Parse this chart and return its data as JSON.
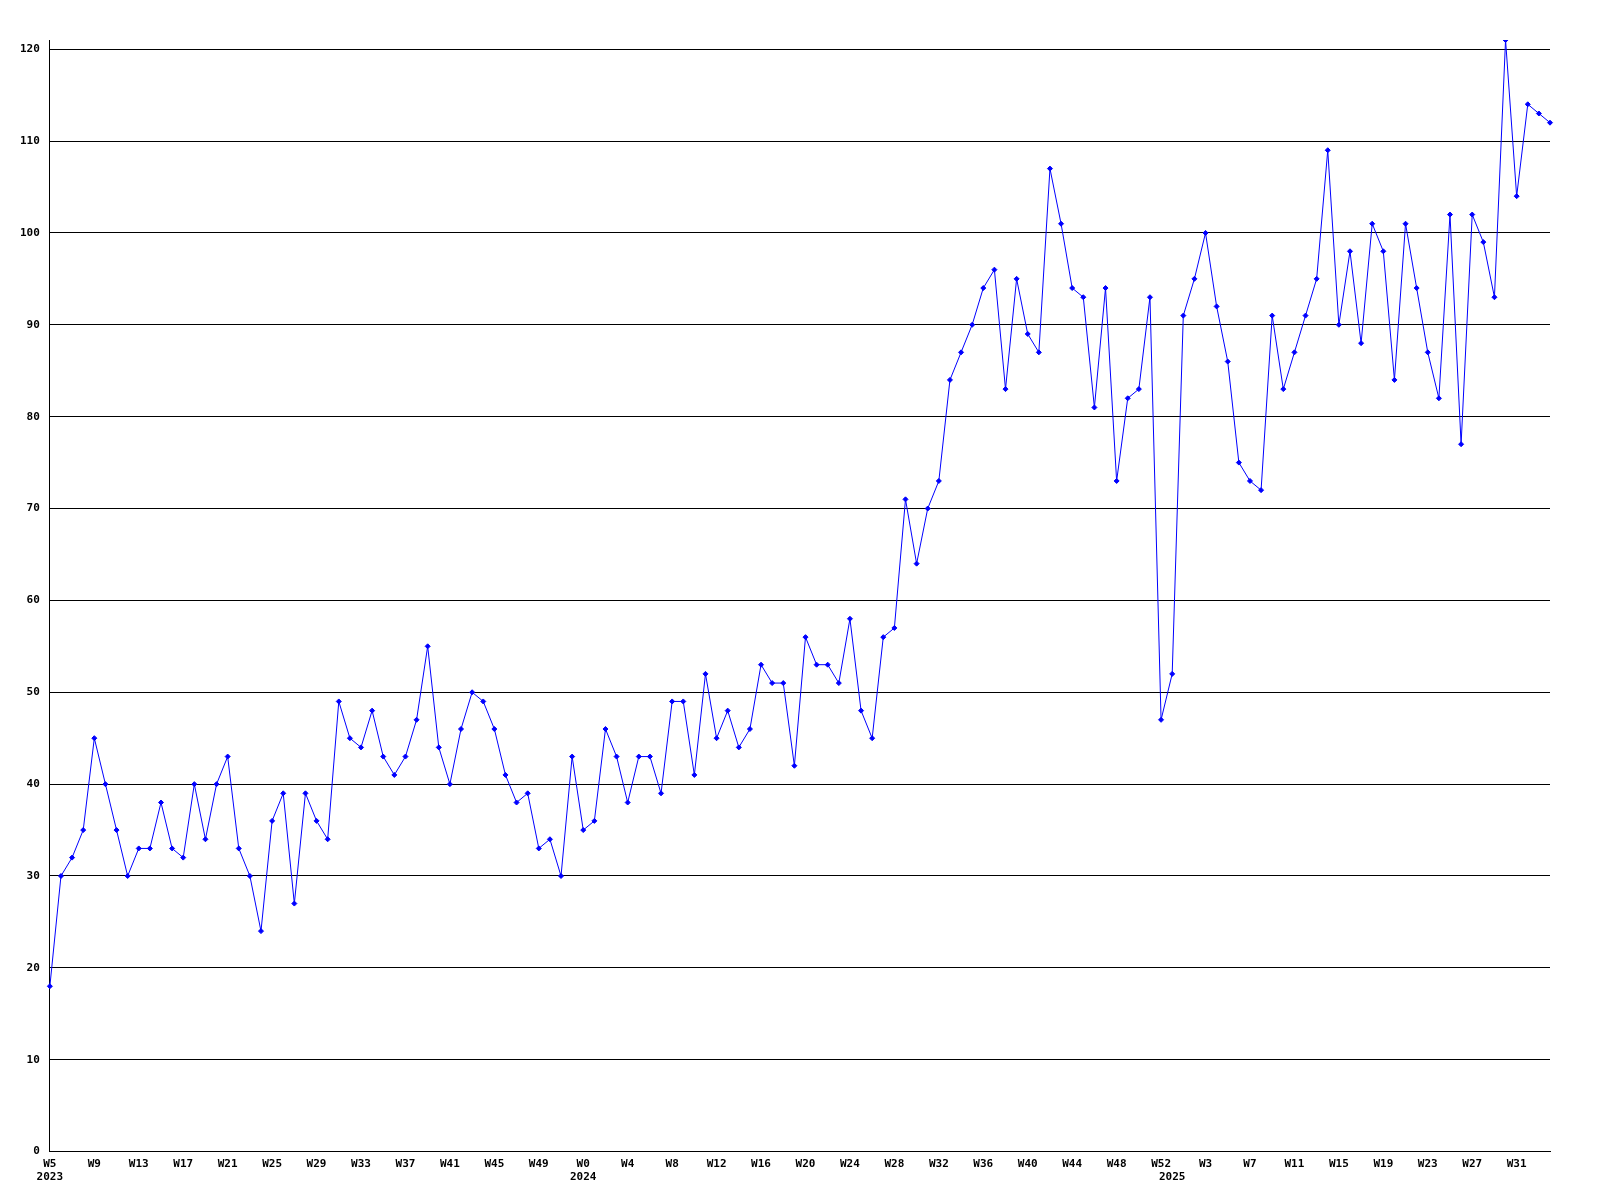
{
  "chart_data": {
    "type": "line",
    "categories": [
      "W5\n2023",
      null,
      null,
      null,
      "W9",
      null,
      null,
      null,
      "W13",
      null,
      null,
      null,
      "W17",
      null,
      null,
      null,
      "W21",
      null,
      null,
      null,
      "W25",
      null,
      null,
      null,
      "W29",
      null,
      null,
      null,
      "W33",
      null,
      null,
      null,
      "W37",
      null,
      null,
      null,
      "W41",
      null,
      null,
      null,
      "W45",
      null,
      null,
      null,
      "W49",
      null,
      null,
      null,
      "W0\n2024",
      null,
      null,
      null,
      "W4",
      null,
      null,
      null,
      "W8",
      null,
      null,
      null,
      "W12",
      null,
      null,
      null,
      "W16",
      null,
      null,
      null,
      "W20",
      null,
      null,
      null,
      "W24",
      null,
      null,
      null,
      "W28",
      null,
      null,
      null,
      "W32",
      null,
      null,
      null,
      "W36",
      null,
      null,
      null,
      "W40",
      null,
      null,
      null,
      "W44",
      null,
      null,
      null,
      "W48",
      null,
      null,
      null,
      "W52",
      "\n2025",
      null,
      null,
      "W3",
      null,
      null,
      null,
      "W7",
      null,
      null,
      null,
      "W11",
      null,
      null,
      null,
      "W15",
      null,
      null,
      null,
      "W19",
      null,
      null,
      null,
      "W23",
      null,
      null,
      null,
      "W27",
      null,
      null,
      null,
      "W31",
      null,
      null,
      null
    ],
    "series": [
      {
        "color": "#0000ff",
        "values": [
          18,
          30,
          32,
          35,
          45,
          40,
          35,
          30,
          33,
          33,
          38,
          33,
          32,
          40,
          34,
          40,
          43,
          33,
          30,
          24,
          36,
          39,
          27,
          39,
          36,
          34,
          49,
          45,
          44,
          48,
          43,
          41,
          43,
          47,
          55,
          44,
          40,
          46,
          50,
          49,
          46,
          41,
          38,
          39,
          33,
          34,
          30,
          43,
          35,
          36,
          46,
          43,
          38,
          43,
          43,
          39,
          49,
          49,
          41,
          52,
          45,
          48,
          44,
          46,
          53,
          51,
          51,
          42,
          56,
          53,
          53,
          51,
          58,
          48,
          45,
          56,
          57,
          71,
          64,
          70,
          73,
          84,
          87,
          90,
          94,
          96,
          83,
          95,
          89,
          87,
          107,
          101,
          94,
          93,
          81,
          94,
          73,
          82,
          83,
          93,
          47,
          52,
          91,
          95,
          100,
          92,
          86,
          75,
          73,
          72,
          91,
          83,
          87,
          91,
          95,
          109,
          90,
          98,
          88,
          101,
          98,
          84,
          101,
          94,
          87,
          82,
          102,
          77,
          102,
          99,
          93,
          121,
          104,
          114,
          113,
          112
        ]
      }
    ],
    "ylim": [
      0,
      121
    ],
    "yticks": [
      0,
      10,
      20,
      30,
      40,
      50,
      60,
      70,
      80,
      90,
      100,
      110,
      120
    ],
    "grid": "y",
    "marker": "diamond",
    "line_style": "solid"
  }
}
